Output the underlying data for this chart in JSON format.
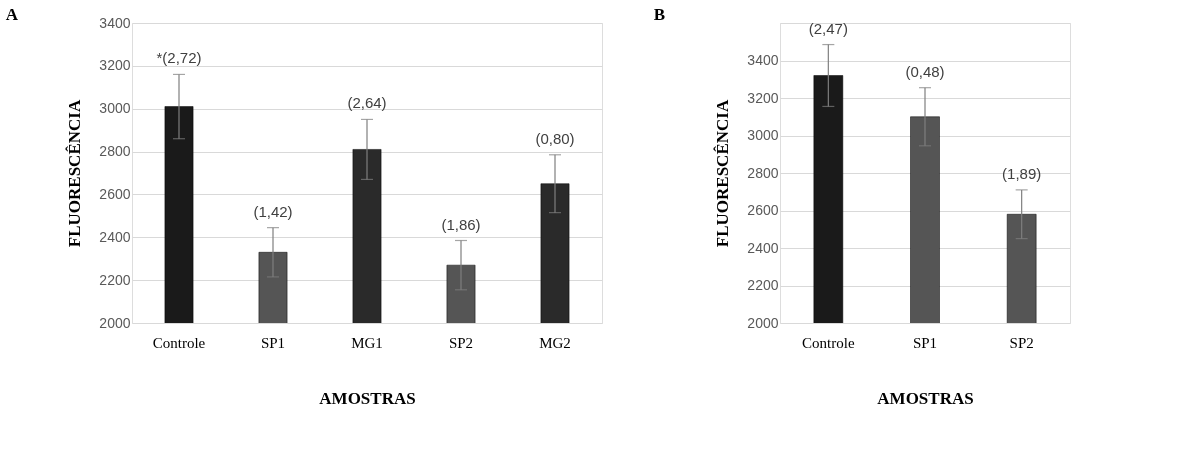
{
  "chart_data": [
    {
      "type": "bar",
      "title": "A",
      "xlabel": "AMOSTRAS",
      "ylabel": "FLUORESCÊNCIA",
      "categories": [
        "Controle",
        "SP1",
        "MG1",
        "SP2",
        "MG2"
      ],
      "values": [
        3010,
        2330,
        2810,
        2270,
        2650
      ],
      "errors": [
        150,
        115,
        140,
        115,
        135
      ],
      "colors": [
        "#1a1a1a",
        "#555555",
        "#2a2a2a",
        "#555555",
        "#2a2a2a"
      ],
      "annotations": [
        {
          "text": "*(2,72)",
          "x": "Controle",
          "y": 3160
        },
        {
          "text": "(1,42)",
          "x": "SP1",
          "y": 2445
        },
        {
          "text": "(2,64)",
          "x": "MG1",
          "y": 2950
        },
        {
          "text": "(1,86)",
          "x": "SP2",
          "y": 2385
        },
        {
          "text": "(0,80)",
          "x": "MG2",
          "y": 2785
        }
      ],
      "ylim": [
        2000,
        3400
      ],
      "yticks": [
        2000,
        2200,
        2400,
        2600,
        2800,
        3000,
        3200,
        3400
      ],
      "grid": "y"
    },
    {
      "type": "bar",
      "title": "B",
      "xlabel": "AMOSTRAS",
      "ylabel": "FLUORESCÊNCIA",
      "categories": [
        "Controle",
        "SP1",
        "SP2"
      ],
      "values": [
        3320,
        3100,
        2580
      ],
      "errors": [
        165,
        155,
        130
      ],
      "colors": [
        "#1a1a1a",
        "#555555",
        "#555555"
      ],
      "annotations": [
        {
          "text": "(2,47)",
          "x": "Controle",
          "y": 3485
        },
        {
          "text": "(0,48)",
          "x": "SP1",
          "y": 3255
        },
        {
          "text": "(1,89)",
          "x": "SP2",
          "y": 2710
        }
      ],
      "ylim": [
        2000,
        3600
      ],
      "yticks": [
        2000,
        2200,
        2400,
        2600,
        2800,
        3000,
        3200,
        3400,
        {
          "value": 3600,
          "label": null
        }
      ],
      "grid": "y"
    }
  ]
}
